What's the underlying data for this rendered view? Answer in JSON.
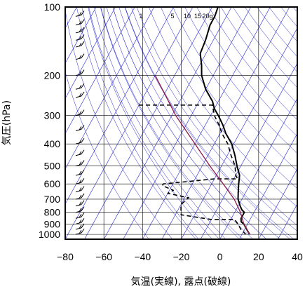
{
  "chart_data": {
    "type": "line",
    "subtype": "skew-T log-P thermodynamic diagram",
    "xlabel": "気温(実線), 露点(破線)",
    "ylabel": "気圧(hPa)",
    "x_ticks": [
      "−80",
      "−60",
      "−40",
      "−20",
      "0",
      "20",
      "40"
    ],
    "x_tick_values": [
      -80,
      -60,
      -40,
      -20,
      0,
      20,
      40
    ],
    "y_ticks": [
      "100",
      "200",
      "300",
      "400",
      "500",
      "600",
      "700",
      "800",
      "900",
      "1000"
    ],
    "y_tick_values": [
      100,
      200,
      300,
      400,
      500,
      600,
      700,
      800,
      900,
      1000
    ],
    "xlim": [
      -80,
      40
    ],
    "ylim": [
      1050,
      100
    ],
    "y_scale": "log",
    "grid": true,
    "mixing_ratio_labels": [
      "1",
      "5",
      "10",
      "15",
      "20g"
    ],
    "colors": {
      "temperature": "#000000",
      "dewpoint": "#000000",
      "parcel": "#8b1a4a",
      "guide_lines": "#2222cc",
      "grid": "#000000",
      "wind_barbs": "#000000"
    },
    "series": [
      {
        "line_style": "solid",
        "points": [
          {
            "p": 100,
            "t": -67
          },
          {
            "p": 110,
            "t": -66
          },
          {
            "p": 120,
            "t": -66
          },
          {
            "p": 140,
            "t": -64
          },
          {
            "p": 160,
            "t": -63
          },
          {
            "p": 180,
            "t": -59
          },
          {
            "p": 200,
            "t": -56
          },
          {
            "p": 230,
            "t": -50
          },
          {
            "p": 260,
            "t": -43
          },
          {
            "p": 280,
            "t": -40
          },
          {
            "p": 300,
            "t": -36
          },
          {
            "p": 330,
            "t": -31
          },
          {
            "p": 360,
            "t": -27
          },
          {
            "p": 400,
            "t": -21
          },
          {
            "p": 450,
            "t": -16
          },
          {
            "p": 500,
            "t": -12
          },
          {
            "p": 550,
            "t": -8
          },
          {
            "p": 600,
            "t": -6
          },
          {
            "p": 650,
            "t": -4
          },
          {
            "p": 700,
            "t": -2
          },
          {
            "p": 750,
            "t": 1
          },
          {
            "p": 780,
            "t": 3
          },
          {
            "p": 800,
            "t": 5
          },
          {
            "p": 820,
            "t": 5
          },
          {
            "p": 850,
            "t": 5
          },
          {
            "p": 880,
            "t": 6
          },
          {
            "p": 900,
            "t": 8
          },
          {
            "p": 950,
            "t": 11
          },
          {
            "p": 1000,
            "t": 14
          }
        ]
      },
      {
        "line_style": "dashed",
        "points": [
          {
            "p": 270,
            "t": -80
          },
          {
            "p": 270,
            "t": -42
          },
          {
            "p": 300,
            "t": -38
          },
          {
            "p": 330,
            "t": -33
          },
          {
            "p": 360,
            "t": -29
          },
          {
            "p": 400,
            "t": -23
          },
          {
            "p": 450,
            "t": -18
          },
          {
            "p": 500,
            "t": -13
          },
          {
            "p": 550,
            "t": -10
          },
          {
            "p": 570,
            "t": -8
          },
          {
            "p": 570,
            "t": -20
          },
          {
            "p": 600,
            "t": -45
          },
          {
            "p": 610,
            "t": -45
          },
          {
            "p": 640,
            "t": -38
          },
          {
            "p": 660,
            "t": -40
          },
          {
            "p": 690,
            "t": -28
          },
          {
            "p": 740,
            "t": -30
          },
          {
            "p": 820,
            "t": -27
          },
          {
            "p": 860,
            "t": -10
          },
          {
            "p": 860,
            "t": 2
          },
          {
            "p": 900,
            "t": 5
          },
          {
            "p": 950,
            "t": 8
          },
          {
            "p": 1000,
            "t": 12
          }
        ]
      },
      {
        "line_style": "solid",
        "points": [
          {
            "p": 200,
            "t": -80
          },
          {
            "p": 300,
            "t": -58
          },
          {
            "p": 400,
            "t": -40
          },
          {
            "p": 500,
            "t": -26
          },
          {
            "p": 600,
            "t": -14
          },
          {
            "p": 700,
            "t": -4
          },
          {
            "p": 800,
            "t": 3
          },
          {
            "p": 900,
            "t": 8
          },
          {
            "p": 1000,
            "t": 14
          }
        ]
      }
    ],
    "wind_barbs_pressures": [
      100,
      110,
      120,
      130,
      140,
      150,
      170,
      200,
      230,
      250,
      300,
      350,
      400,
      450,
      500,
      550,
      600,
      650,
      700,
      750,
      800,
      850,
      900,
      950,
      1000
    ]
  }
}
